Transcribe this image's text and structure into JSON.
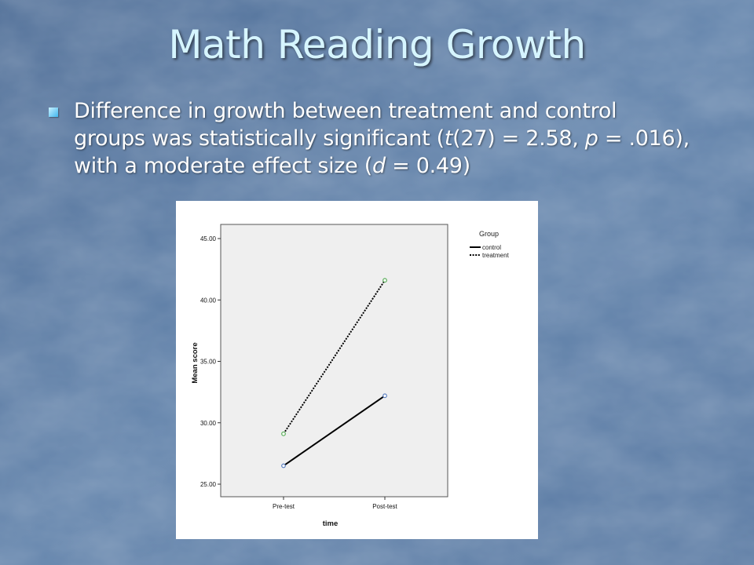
{
  "slide": {
    "title": "Math Reading Growth",
    "bullet": {
      "t1": "Difference in growth between treatment and control groups was statistically significant (",
      "t_sym": "t",
      "t2": "(27) = 2.58, ",
      "p_sym": "p",
      "t3": " = .016), with a moderate effect size (",
      "d_sym": "d",
      "t4": " = 0.49)"
    }
  },
  "colors": {
    "slide_background": "#5f7fa6",
    "title": "#d6f5ff",
    "plot_background": "#efefef",
    "control_marker": "#5b7fc0",
    "treatment_marker": "#5aae5a"
  },
  "chart_data": {
    "type": "line",
    "categories": [
      "Pre-test",
      "Post-test"
    ],
    "series": [
      {
        "name": "control",
        "values": [
          26.5,
          32.2
        ],
        "line_style": "solid"
      },
      {
        "name": "treatment",
        "values": [
          29.1,
          41.6
        ],
        "line_style": "dotted"
      }
    ],
    "xlabel": "time",
    "ylabel": "Mean score",
    "ylim": [
      25,
      45
    ],
    "yticks": [
      "25.00",
      "30.00",
      "35.00",
      "40.00",
      "45.00"
    ],
    "ytick_values": [
      25,
      30,
      35,
      40,
      45
    ],
    "legend": {
      "title": "Group",
      "placement": "top-right, outside plot"
    },
    "grid": false
  }
}
